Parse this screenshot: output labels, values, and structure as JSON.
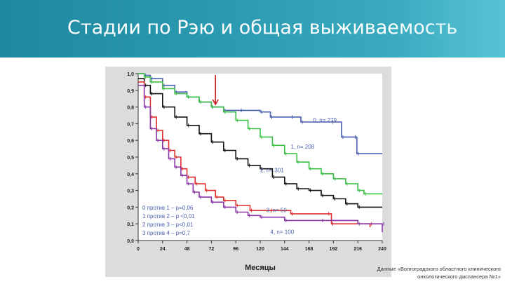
{
  "header": {
    "title": "Стадии по Рэю и общая выживаемость"
  },
  "source_note": {
    "line1": "Данные «Волгоградского областного клинического",
    "line2": "онкологического диспансера №1»"
  },
  "chart_data": {
    "type": "line",
    "title": "",
    "xlabel": "Месяцы",
    "ylabel": "",
    "xlim": [
      0,
      240
    ],
    "ylim": [
      0,
      1.0
    ],
    "x_ticks": [
      0,
      24,
      48,
      72,
      96,
      120,
      144,
      168,
      192,
      216,
      240
    ],
    "y_ticks": [
      "0,0",
      "0,1",
      "0,2",
      "0,3",
      "0,4",
      "0,5",
      "0,6",
      "0,7",
      "0,8",
      "0,9",
      "1,0"
    ],
    "series": [
      {
        "name": "0, n= 279",
        "color": "#4a5fb0",
        "points": [
          [
            0,
            1.0
          ],
          [
            6,
            0.99
          ],
          [
            12,
            0.97
          ],
          [
            24,
            0.93
          ],
          [
            36,
            0.89
          ],
          [
            48,
            0.86
          ],
          [
            60,
            0.83
          ],
          [
            72,
            0.8
          ],
          [
            84,
            0.78
          ],
          [
            100,
            0.78
          ],
          [
            120,
            0.77
          ],
          [
            130,
            0.74
          ],
          [
            150,
            0.74
          ],
          [
            160,
            0.71
          ],
          [
            190,
            0.71
          ],
          [
            200,
            0.62
          ],
          [
            212,
            0.62
          ],
          [
            215,
            0.52
          ],
          [
            240,
            0.52
          ]
        ]
      },
      {
        "name": "1, n= 208",
        "color": "#3cbf46",
        "points": [
          [
            0,
            1.0
          ],
          [
            6,
            0.98
          ],
          [
            12,
            0.95
          ],
          [
            24,
            0.91
          ],
          [
            36,
            0.88
          ],
          [
            48,
            0.86
          ],
          [
            60,
            0.83
          ],
          [
            72,
            0.8
          ],
          [
            84,
            0.77
          ],
          [
            96,
            0.72
          ],
          [
            108,
            0.67
          ],
          [
            120,
            0.62
          ],
          [
            132,
            0.57
          ],
          [
            144,
            0.52
          ],
          [
            156,
            0.47
          ],
          [
            168,
            0.43
          ],
          [
            180,
            0.4
          ],
          [
            192,
            0.37
          ],
          [
            204,
            0.34
          ],
          [
            216,
            0.3
          ],
          [
            222,
            0.28
          ],
          [
            240,
            0.28
          ]
        ]
      },
      {
        "name": "2, n= 301",
        "color": "#111111",
        "points": [
          [
            0,
            0.97
          ],
          [
            6,
            0.93
          ],
          [
            12,
            0.88
          ],
          [
            24,
            0.8
          ],
          [
            36,
            0.74
          ],
          [
            48,
            0.69
          ],
          [
            60,
            0.64
          ],
          [
            72,
            0.59
          ],
          [
            84,
            0.54
          ],
          [
            96,
            0.49
          ],
          [
            108,
            0.45
          ],
          [
            120,
            0.43
          ],
          [
            132,
            0.38
          ],
          [
            144,
            0.34
          ],
          [
            156,
            0.31
          ],
          [
            168,
            0.3
          ],
          [
            180,
            0.27
          ],
          [
            192,
            0.25
          ],
          [
            204,
            0.22
          ],
          [
            216,
            0.2
          ],
          [
            240,
            0.2
          ]
        ]
      },
      {
        "name": "3, n= 50",
        "color": "#e03030",
        "points": [
          [
            0,
            0.95
          ],
          [
            6,
            0.86
          ],
          [
            12,
            0.74
          ],
          [
            18,
            0.66
          ],
          [
            24,
            0.6
          ],
          [
            30,
            0.54
          ],
          [
            36,
            0.5
          ],
          [
            42,
            0.43
          ],
          [
            48,
            0.38
          ],
          [
            56,
            0.34
          ],
          [
            66,
            0.3
          ],
          [
            76,
            0.26
          ],
          [
            84,
            0.24
          ],
          [
            96,
            0.21
          ],
          [
            110,
            0.18
          ],
          [
            130,
            0.18
          ],
          [
            150,
            0.16
          ],
          [
            186,
            0.16
          ],
          [
            190,
            0.1
          ],
          [
            228,
            0.1
          ],
          [
            228,
            0.08
          ]
        ]
      },
      {
        "name": "4, n= 100",
        "color": "#8a35a8",
        "points": [
          [
            0,
            0.93
          ],
          [
            6,
            0.8
          ],
          [
            12,
            0.67
          ],
          [
            18,
            0.6
          ],
          [
            24,
            0.55
          ],
          [
            30,
            0.49
          ],
          [
            36,
            0.44
          ],
          [
            42,
            0.39
          ],
          [
            48,
            0.34
          ],
          [
            54,
            0.29
          ],
          [
            60,
            0.26
          ],
          [
            72,
            0.23
          ],
          [
            84,
            0.2
          ],
          [
            96,
            0.17
          ],
          [
            108,
            0.15
          ],
          [
            120,
            0.14
          ],
          [
            144,
            0.12
          ],
          [
            180,
            0.12
          ],
          [
            216,
            0.1
          ],
          [
            240,
            0.1
          ],
          [
            240,
            0.05
          ]
        ]
      }
    ],
    "series_labels": [
      {
        "text": "0, n= 279",
        "at": [
          172,
          0.71
        ]
      },
      {
        "text": "1, n= 208",
        "at": [
          150,
          0.55
        ]
      },
      {
        "text": "2, n= 301",
        "at": [
          120,
          0.41
        ]
      },
      {
        "text": "3, n= 50",
        "at": [
          126,
          0.17
        ]
      },
      {
        "text": "4, n= 100",
        "at": [
          130,
          0.04
        ]
      }
    ],
    "annotation_lines": [
      "0 против 1 – p=0,06",
      "1 против 2 – p <0,01",
      "2 против 3 – p<0,01",
      "3 против 4 – p=0,7"
    ],
    "marker_arrow_x": 76,
    "grid": false,
    "legend": "none"
  }
}
